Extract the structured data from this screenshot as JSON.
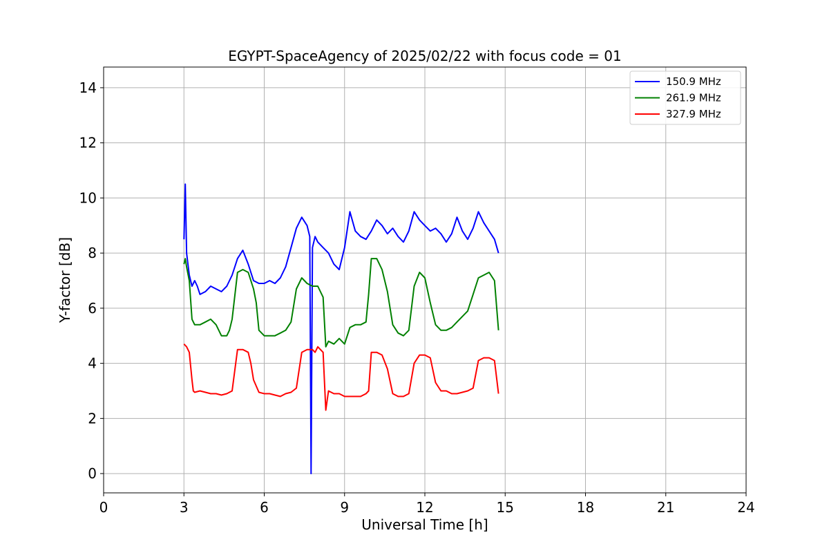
{
  "chart_data": {
    "type": "line",
    "title": "EGYPT-SpaceAgency of 2025/02/22 with focus code = 01",
    "xlabel": "Universal Time [h]",
    "ylabel": "Y-factor [dB]",
    "xlim": [
      0,
      24
    ],
    "ylim": [
      -0.7,
      14.75
    ],
    "xticks": [
      0,
      3,
      6,
      9,
      12,
      15,
      18,
      21,
      24
    ],
    "yticks": [
      0,
      2,
      4,
      6,
      8,
      10,
      12,
      14
    ],
    "grid": true,
    "legend_position": "top-right",
    "series": [
      {
        "name": "150.9 MHz",
        "color": "#0000ff",
        "x": [
          3.0,
          3.05,
          3.1,
          3.2,
          3.3,
          3.4,
          3.5,
          3.6,
          3.8,
          4.0,
          4.2,
          4.4,
          4.6,
          4.8,
          5.0,
          5.2,
          5.4,
          5.6,
          5.8,
          6.0,
          6.2,
          6.4,
          6.6,
          6.8,
          7.0,
          7.2,
          7.4,
          7.6,
          7.7,
          7.75,
          7.8,
          7.9,
          8.0,
          8.2,
          8.4,
          8.6,
          8.8,
          9.0,
          9.2,
          9.4,
          9.6,
          9.8,
          10.0,
          10.2,
          10.4,
          10.6,
          10.8,
          11.0,
          11.2,
          11.4,
          11.6,
          11.8,
          12.0,
          12.2,
          12.4,
          12.6,
          12.8,
          13.0,
          13.2,
          13.4,
          13.6,
          13.8,
          14.0,
          14.2,
          14.4,
          14.6,
          14.75
        ],
        "y": [
          8.5,
          10.5,
          8.0,
          7.2,
          6.8,
          7.0,
          6.8,
          6.5,
          6.6,
          6.8,
          6.7,
          6.6,
          6.8,
          7.2,
          7.8,
          8.1,
          7.6,
          7.0,
          6.9,
          6.9,
          7.0,
          6.9,
          7.1,
          7.5,
          8.2,
          8.9,
          9.3,
          9.0,
          8.6,
          0.0,
          8.2,
          8.6,
          8.4,
          8.2,
          8.0,
          7.6,
          7.4,
          8.2,
          9.5,
          8.8,
          8.6,
          8.5,
          8.8,
          9.2,
          9.0,
          8.7,
          8.9,
          8.6,
          8.4,
          8.8,
          9.5,
          9.2,
          9.0,
          8.8,
          8.9,
          8.7,
          8.4,
          8.7,
          9.3,
          8.8,
          8.5,
          8.9,
          9.5,
          9.1,
          8.8,
          8.5,
          8.0
        ]
      },
      {
        "name": "261.9 MHz",
        "color": "#008000",
        "x": [
          3.0,
          3.05,
          3.1,
          3.2,
          3.3,
          3.4,
          3.6,
          3.8,
          4.0,
          4.2,
          4.4,
          4.6,
          4.7,
          4.8,
          5.0,
          5.2,
          5.4,
          5.6,
          5.7,
          5.8,
          6.0,
          6.2,
          6.4,
          6.6,
          6.8,
          7.0,
          7.2,
          7.4,
          7.6,
          7.8,
          8.0,
          8.2,
          8.3,
          8.4,
          8.6,
          8.8,
          9.0,
          9.2,
          9.4,
          9.6,
          9.8,
          9.9,
          10.0,
          10.2,
          10.4,
          10.6,
          10.8,
          11.0,
          11.2,
          11.4,
          11.6,
          11.8,
          12.0,
          12.2,
          12.4,
          12.6,
          12.8,
          13.0,
          13.2,
          13.4,
          13.6,
          13.8,
          14.0,
          14.2,
          14.4,
          14.6,
          14.75
        ],
        "y": [
          7.6,
          7.8,
          7.5,
          7.0,
          5.6,
          5.4,
          5.4,
          5.5,
          5.6,
          5.4,
          5.0,
          5.0,
          5.2,
          5.6,
          7.3,
          7.4,
          7.3,
          6.7,
          6.2,
          5.2,
          5.0,
          5.0,
          5.0,
          5.1,
          5.2,
          5.5,
          6.7,
          7.1,
          6.9,
          6.8,
          6.8,
          6.4,
          4.6,
          4.8,
          4.7,
          4.9,
          4.7,
          5.3,
          5.4,
          5.4,
          5.5,
          6.5,
          7.8,
          7.8,
          7.4,
          6.6,
          5.4,
          5.1,
          5.0,
          5.2,
          6.8,
          7.3,
          7.1,
          6.2,
          5.4,
          5.2,
          5.2,
          5.3,
          5.5,
          5.7,
          5.9,
          6.5,
          7.1,
          7.2,
          7.3,
          7.0,
          5.2
        ]
      },
      {
        "name": "327.9 MHz",
        "color": "#ff0000",
        "x": [
          3.0,
          3.1,
          3.2,
          3.3,
          3.35,
          3.4,
          3.6,
          3.8,
          4.0,
          4.2,
          4.4,
          4.6,
          4.8,
          5.0,
          5.2,
          5.4,
          5.5,
          5.6,
          5.8,
          6.0,
          6.2,
          6.4,
          6.6,
          6.8,
          7.0,
          7.2,
          7.4,
          7.6,
          7.8,
          7.9,
          8.0,
          8.2,
          8.3,
          8.4,
          8.6,
          8.8,
          9.0,
          9.2,
          9.4,
          9.6,
          9.8,
          9.9,
          10.0,
          10.2,
          10.4,
          10.6,
          10.8,
          11.0,
          11.2,
          11.4,
          11.6,
          11.8,
          12.0,
          12.2,
          12.4,
          12.6,
          12.8,
          13.0,
          13.2,
          13.4,
          13.6,
          13.8,
          14.0,
          14.2,
          14.4,
          14.6,
          14.75
        ],
        "y": [
          4.7,
          4.6,
          4.4,
          3.4,
          3.0,
          2.95,
          3.0,
          2.95,
          2.9,
          2.9,
          2.85,
          2.9,
          3.0,
          4.5,
          4.5,
          4.4,
          4.0,
          3.4,
          2.95,
          2.9,
          2.9,
          2.85,
          2.8,
          2.9,
          2.95,
          3.1,
          4.4,
          4.5,
          4.5,
          4.4,
          4.6,
          4.4,
          2.3,
          3.0,
          2.9,
          2.9,
          2.8,
          2.8,
          2.8,
          2.8,
          2.9,
          3.0,
          4.4,
          4.4,
          4.3,
          3.8,
          2.9,
          2.8,
          2.8,
          2.9,
          4.0,
          4.3,
          4.3,
          4.2,
          3.3,
          3.0,
          3.0,
          2.9,
          2.9,
          2.95,
          3.0,
          3.1,
          4.1,
          4.2,
          4.2,
          4.1,
          2.9
        ]
      }
    ]
  }
}
